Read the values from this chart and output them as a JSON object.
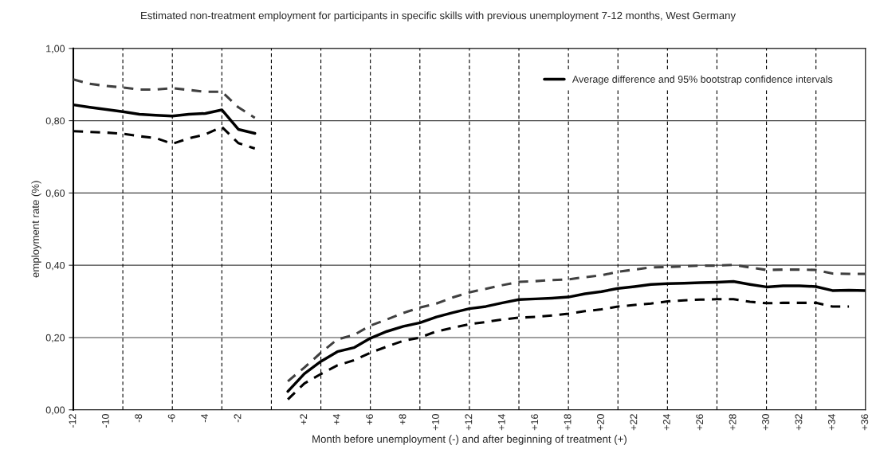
{
  "chart_data": {
    "type": "line",
    "title": "Estimated non-treatment employment for participants in specific skills with previous unemployment 7-12 months, West Germany",
    "xlabel": "Month before unemployment (-) and after beginning of treatment (+)",
    "ylabel": "employment rate (%)",
    "categories": [
      "-12",
      null,
      "-10",
      null,
      "-8",
      null,
      "-6",
      null,
      "-4",
      null,
      "-2",
      null,
      null,
      null,
      "+2",
      null,
      "+4",
      null,
      "+6",
      null,
      "+8",
      null,
      "+10",
      null,
      "+12",
      null,
      "+14",
      null,
      "+16",
      null,
      "+18",
      null,
      "+20",
      null,
      "+22",
      null,
      "+24",
      null,
      "+26",
      null,
      "+28",
      null,
      "+30",
      null,
      "+32",
      null,
      "+34",
      null,
      "+36"
    ],
    "series": [
      {
        "color": "#404040",
        "line_style": "dashed",
        "values": [
          0.914,
          0.902,
          0.896,
          0.892,
          0.886,
          0.886,
          0.89,
          0.885,
          0.88,
          0.88,
          0.837,
          0.808,
          null,
          0.079,
          0.117,
          0.158,
          0.195,
          0.207,
          0.233,
          0.25,
          0.268,
          0.283,
          0.294,
          0.311,
          0.325,
          0.335,
          0.345,
          0.354,
          0.356,
          0.359,
          0.361,
          0.367,
          0.372,
          0.382,
          0.388,
          0.394,
          0.395,
          0.397,
          0.399,
          0.399,
          0.401,
          0.394,
          0.387,
          0.388,
          0.388,
          0.387,
          0.377,
          0.376,
          0.376
        ]
      },
      {
        "color": "#000000",
        "line_style": "dashed",
        "values": [
          0.771,
          0.769,
          0.767,
          0.764,
          0.757,
          0.752,
          0.736,
          0.751,
          0.762,
          0.783,
          0.738,
          0.723,
          null,
          0.029,
          0.073,
          0.099,
          0.123,
          0.137,
          0.158,
          0.175,
          0.191,
          0.2,
          0.217,
          0.227,
          0.237,
          0.243,
          0.25,
          0.255,
          0.257,
          0.261,
          0.266,
          0.273,
          0.278,
          0.286,
          0.29,
          0.294,
          0.3,
          0.303,
          0.305,
          0.306,
          0.306,
          0.299,
          0.295,
          0.296,
          0.296,
          0.296,
          0.286,
          0.286,
          null
        ]
      },
      {
        "name": "Average difference and 95% bootstrap confidence intervals",
        "color": "#000000",
        "line_style": "solid",
        "values": [
          0.844,
          0.837,
          0.831,
          0.825,
          0.818,
          0.815,
          0.813,
          0.818,
          0.82,
          0.83,
          0.776,
          0.765,
          null,
          0.051,
          0.1,
          0.134,
          0.161,
          0.172,
          0.198,
          0.217,
          0.231,
          0.241,
          0.257,
          0.269,
          0.28,
          0.286,
          0.296,
          0.305,
          0.307,
          0.309,
          0.312,
          0.321,
          0.327,
          0.336,
          0.341,
          0.347,
          0.349,
          0.35,
          0.352,
          0.353,
          0.355,
          0.347,
          0.34,
          0.343,
          0.343,
          0.341,
          0.33,
          0.331,
          0.33
        ]
      }
    ],
    "ylim": [
      0,
      1
    ],
    "yticks": [
      {
        "value": 0,
        "label": "0,00"
      },
      {
        "value": 0.2,
        "label": "0,20"
      },
      {
        "value": 0.4,
        "label": "0,40"
      },
      {
        "value": 0.6,
        "label": "0,60"
      },
      {
        "value": 0.8,
        "label": "0,80"
      },
      {
        "value": 1,
        "label": "1,00"
      }
    ],
    "grid": true,
    "legend": "top right",
    "marker": "none"
  }
}
